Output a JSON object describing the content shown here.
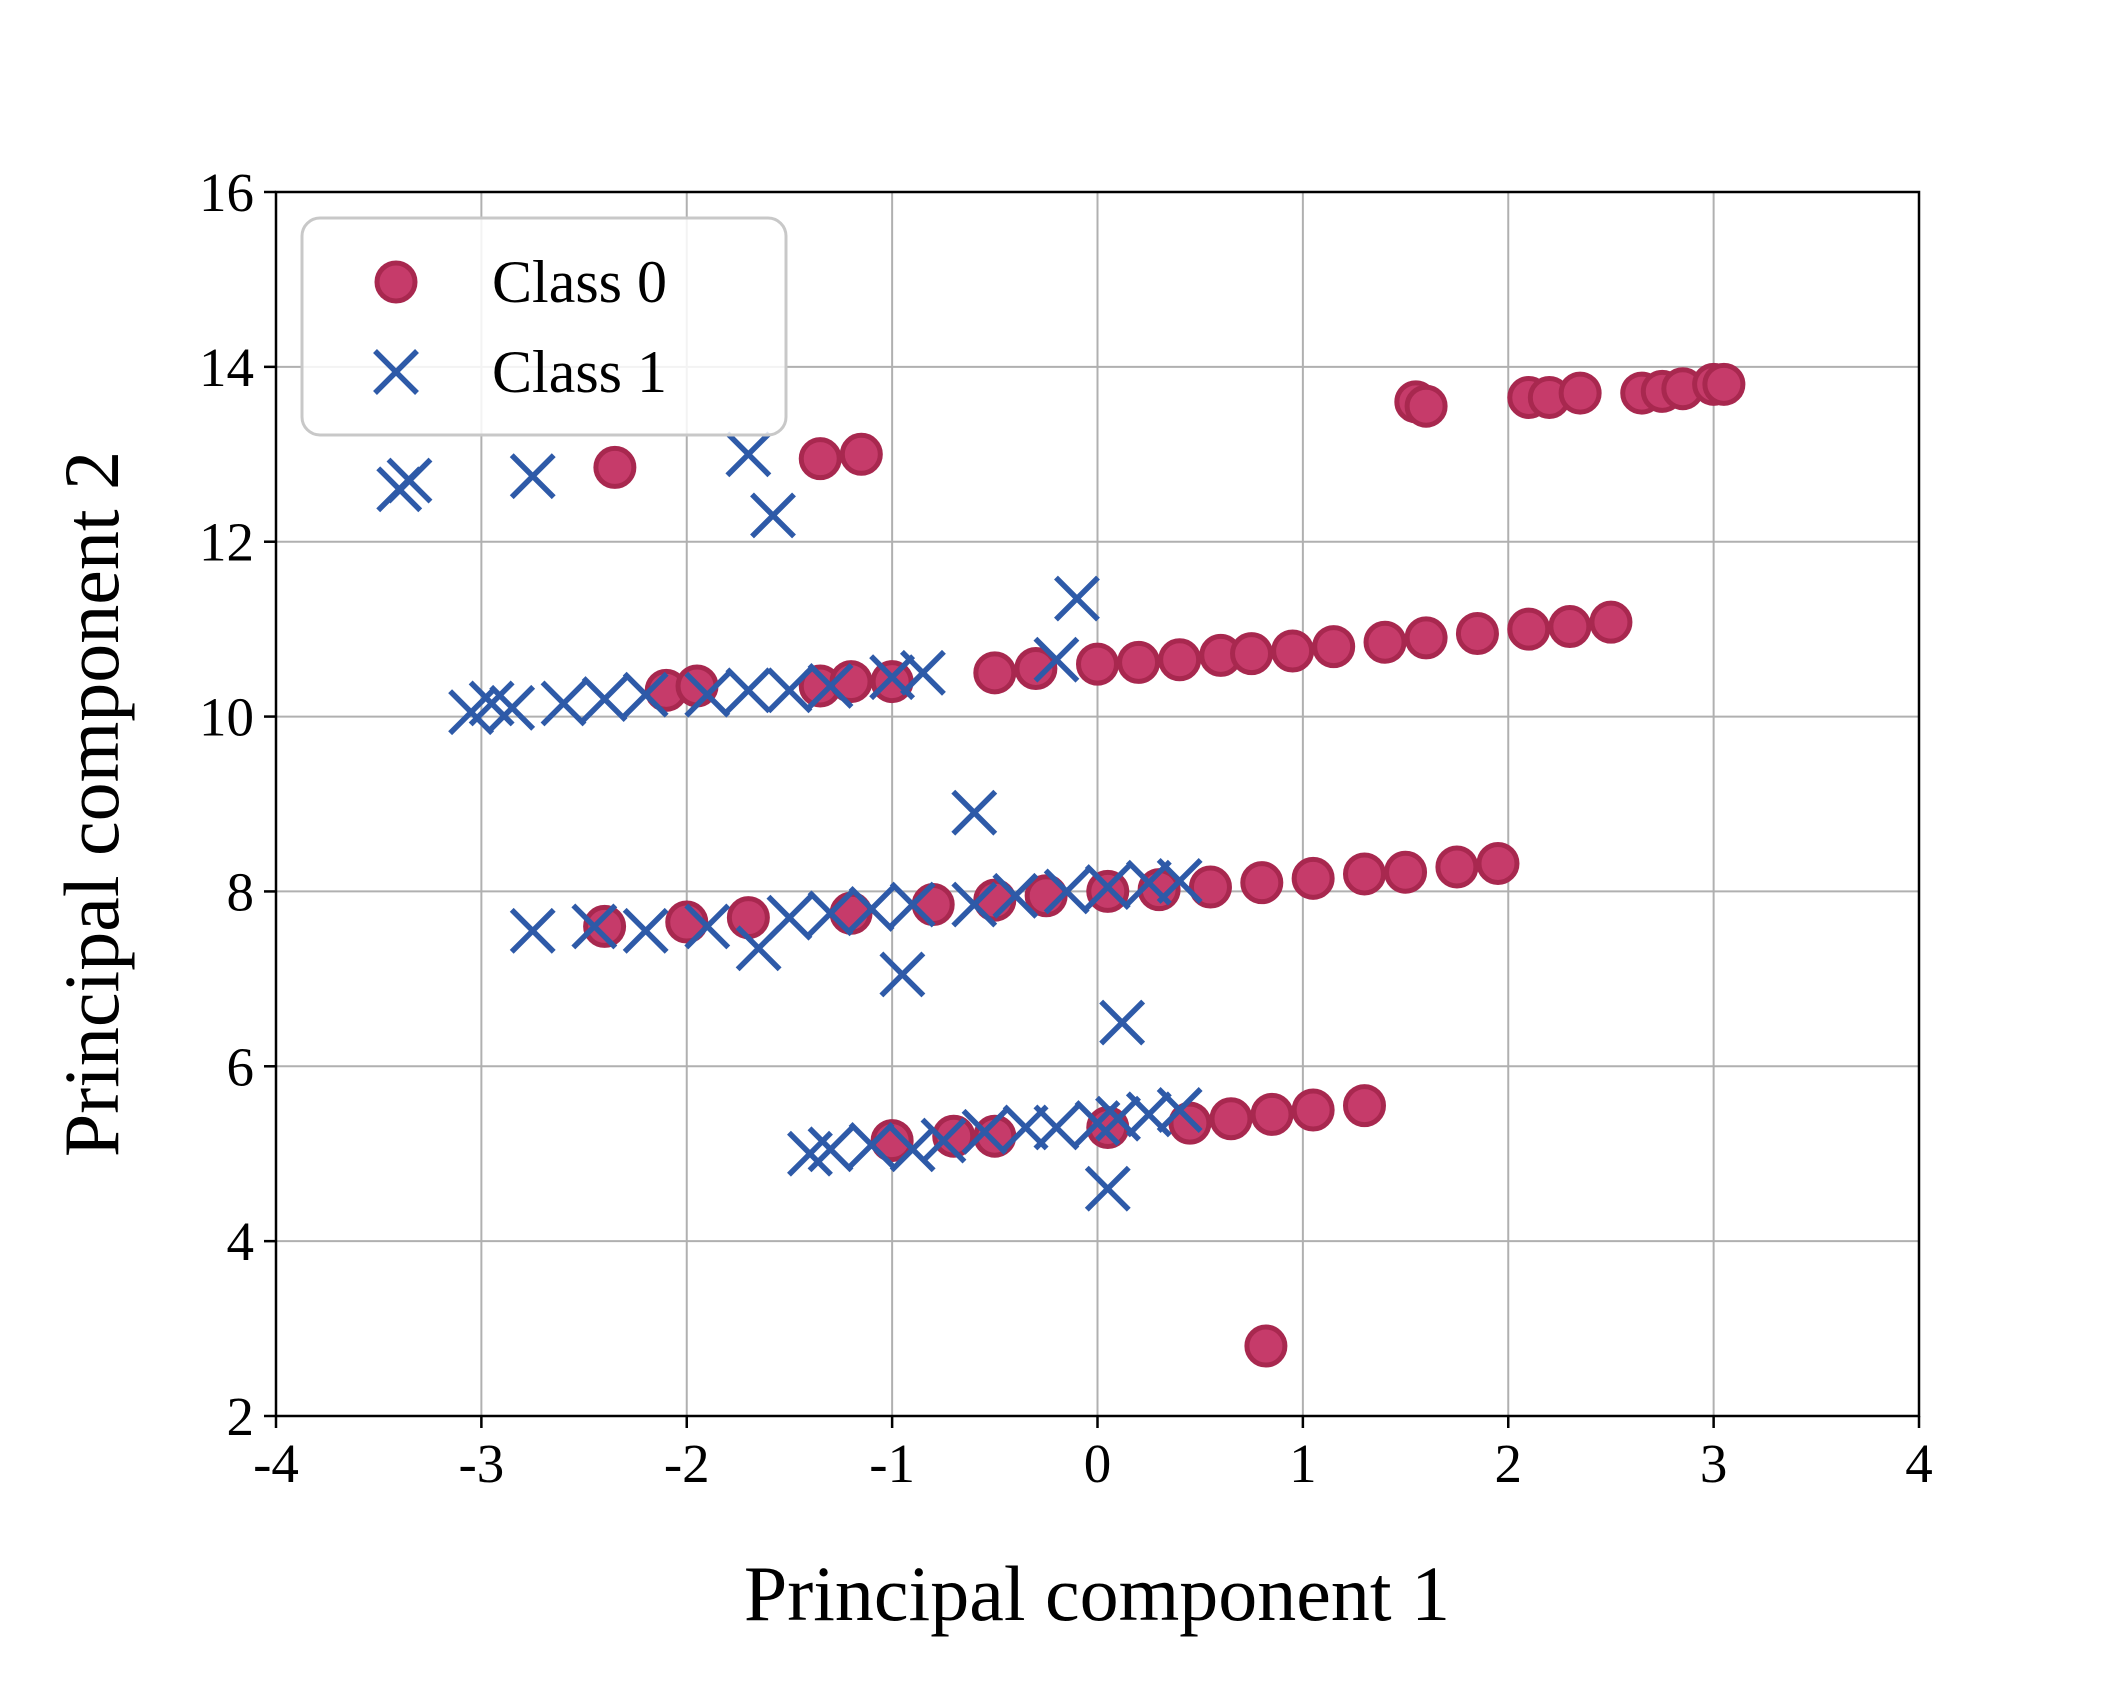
{
  "chart_data": {
    "type": "scatter",
    "xlabel": "Principal component 1",
    "ylabel": "Principal component 2",
    "xlim": [
      -4,
      4
    ],
    "ylim": [
      2,
      16
    ],
    "xticks": [
      -4,
      -3,
      -2,
      -1,
      0,
      1,
      2,
      3,
      4
    ],
    "yticks": [
      2,
      4,
      6,
      8,
      10,
      12,
      14,
      16
    ],
    "grid": true,
    "legend": "upper-left",
    "series": [
      {
        "name": "Class 0",
        "marker": "circle",
        "color": "#c63b6a",
        "edgecolor": "#a8284f",
        "x": [
          -2.35,
          -1.35,
          -1.15,
          1.55,
          1.6,
          2.1,
          2.2,
          2.35,
          2.65,
          2.75,
          2.85,
          3.0,
          3.05,
          -2.1,
          -1.95,
          -1.35,
          -1.2,
          -1.0,
          -0.5,
          -0.3,
          0.0,
          0.2,
          0.4,
          0.6,
          0.75,
          0.95,
          1.15,
          1.4,
          1.6,
          1.85,
          2.1,
          2.3,
          2.5,
          -2.4,
          -2.0,
          -1.7,
          -1.2,
          -0.8,
          -0.5,
          -0.25,
          0.05,
          0.3,
          0.55,
          0.8,
          1.05,
          1.3,
          1.5,
          1.75,
          1.95,
          -1.0,
          -0.7,
          -0.5,
          0.05,
          0.45,
          0.65,
          0.85,
          1.05,
          1.3,
          0.82
        ],
        "y": [
          12.85,
          12.95,
          13.0,
          13.6,
          13.55,
          13.65,
          13.65,
          13.7,
          13.7,
          13.72,
          13.75,
          13.8,
          13.8,
          10.3,
          10.35,
          10.35,
          10.4,
          10.4,
          10.5,
          10.55,
          10.6,
          10.62,
          10.65,
          10.7,
          10.72,
          10.75,
          10.8,
          10.85,
          10.9,
          10.95,
          11.0,
          11.03,
          11.08,
          7.6,
          7.65,
          7.7,
          7.75,
          7.85,
          7.9,
          7.95,
          8.0,
          8.02,
          8.05,
          8.1,
          8.15,
          8.2,
          8.22,
          8.28,
          8.32,
          5.15,
          5.2,
          5.2,
          5.3,
          5.35,
          5.4,
          5.45,
          5.5,
          5.55,
          2.8
        ]
      },
      {
        "name": "Class 1",
        "marker": "x",
        "color": "#2e5aa8",
        "x": [
          -3.4,
          -3.35,
          -2.75,
          -1.7,
          -1.58,
          -0.1,
          -0.2,
          -3.05,
          -2.95,
          -2.85,
          -2.6,
          -2.4,
          -2.2,
          -1.9,
          -1.7,
          -1.5,
          -1.3,
          -1.0,
          -0.85,
          -0.6,
          -2.75,
          -2.45,
          -2.2,
          -1.9,
          -1.65,
          -1.5,
          -1.3,
          -1.1,
          -0.95,
          -0.9,
          -0.6,
          -0.4,
          -0.15,
          0.05,
          0.25,
          0.4,
          0.12,
          -1.4,
          -1.3,
          -1.1,
          -0.9,
          -0.75,
          -0.55,
          -0.35,
          -0.2,
          0.0,
          0.1,
          0.25,
          0.4,
          0.05
        ],
        "y": [
          12.6,
          12.7,
          12.75,
          13.0,
          12.3,
          11.35,
          10.65,
          10.05,
          10.15,
          10.1,
          10.15,
          10.2,
          10.25,
          10.25,
          10.3,
          10.3,
          10.35,
          10.45,
          10.5,
          8.9,
          7.55,
          7.6,
          7.55,
          7.6,
          7.35,
          7.7,
          7.75,
          7.8,
          7.05,
          7.85,
          7.85,
          7.95,
          8.0,
          8.05,
          8.1,
          8.12,
          6.5,
          5.0,
          5.05,
          5.1,
          5.05,
          5.15,
          5.25,
          5.3,
          5.3,
          5.35,
          5.4,
          5.45,
          5.5,
          4.6
        ]
      }
    ]
  }
}
